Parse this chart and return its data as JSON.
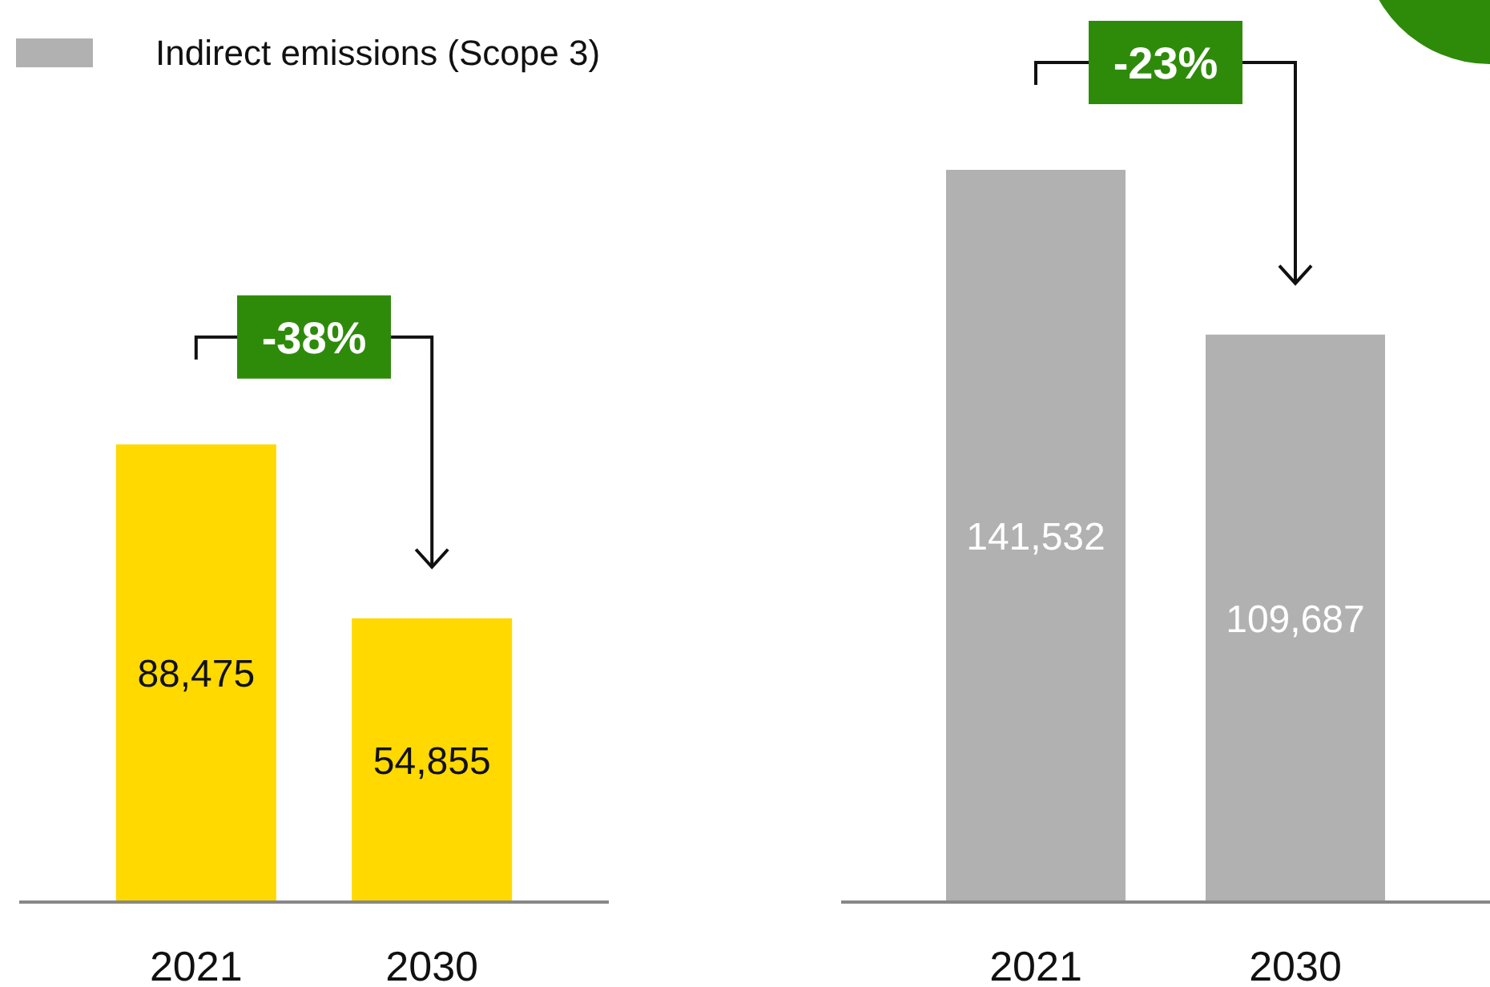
{
  "chart_data": [
    {
      "type": "bar",
      "categories": [
        "2021",
        "2030"
      ],
      "series": [
        {
          "color": "#ffd900",
          "values": [
            88475,
            54855
          ],
          "value_labels": [
            "88,475",
            "54,855"
          ]
        }
      ],
      "annotations": [
        "-38%"
      ]
    },
    {
      "type": "bar",
      "categories": [
        "2021",
        "2030"
      ],
      "series": [
        {
          "name": "Indirect emissions (Scope 3)",
          "color": "#b1b1b1",
          "values": [
            141532,
            109687
          ],
          "value_labels": [
            "141,532",
            "109,687"
          ]
        }
      ],
      "legend": "top left",
      "annotations": [
        "-23%"
      ]
    }
  ]
}
